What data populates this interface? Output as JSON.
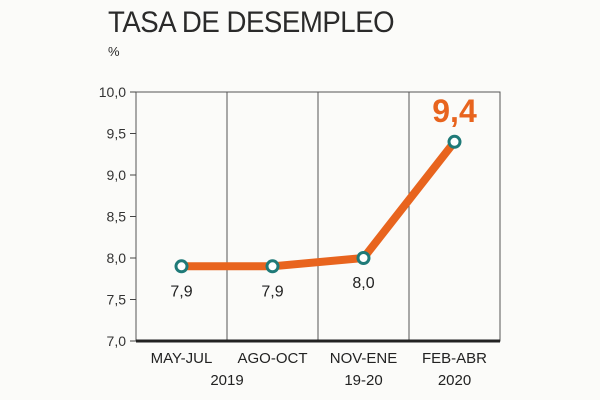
{
  "chart_data": {
    "type": "line",
    "title": "TASA DE DESEMPLEO",
    "ylabel": "%",
    "xlabel": "",
    "categories": [
      {
        "line1": "MAY-JUL",
        "line2": ""
      },
      {
        "line1": "AGO-OCT",
        "line2": ""
      },
      {
        "line1": "NOV-ENE",
        "line2": "19-20"
      },
      {
        "line1": "FEB-ABR",
        "line2": "2020"
      }
    ],
    "year_label": "2019",
    "values": [
      7.9,
      7.9,
      8.0,
      9.4
    ],
    "value_labels": [
      "7,9",
      "7,9",
      "8,0",
      "9,4"
    ],
    "highlight_index": 3,
    "ylim": [
      7.0,
      10.0
    ],
    "yticks": [
      7.0,
      7.5,
      8.0,
      8.5,
      9.0,
      9.5,
      10.0
    ],
    "ytick_labels": [
      "7,0",
      "7,5",
      "8,0",
      "8,5",
      "9,0",
      "9,5",
      "10,0"
    ],
    "grid": true,
    "colors": {
      "line": "#e8641e",
      "marker_edge": "#1f7a78",
      "marker_fill": "#ffffff",
      "highlight": "#e8641e"
    }
  }
}
